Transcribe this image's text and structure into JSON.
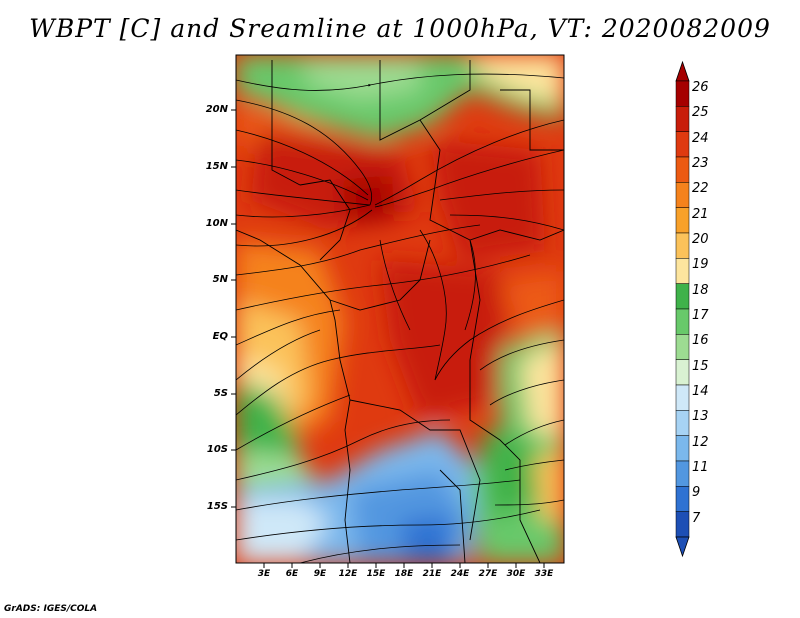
{
  "title": "WBPT [C] and Sreamline at 1000hPa, VT: 2020082009",
  "credit": "GrADS: IGES/COLA",
  "map": {
    "variable": "Wet-bulb potential temperature",
    "units": "C",
    "level": "1000hPa",
    "valid_time": "2020082009",
    "lat_labels": [
      "20N",
      "15N",
      "10N",
      "5N",
      "EQ",
      "5S",
      "10S",
      "15S"
    ],
    "lon_labels": [
      "3E",
      "6E",
      "9E",
      "12E",
      "15E",
      "18E",
      "21E",
      "24E",
      "27E",
      "30E",
      "33E"
    ]
  },
  "colorbar": {
    "levels": [
      "26",
      "25",
      "24",
      "23",
      "22",
      "21",
      "20",
      "19",
      "18",
      "17",
      "16",
      "15",
      "14",
      "13",
      "12",
      "11",
      "9",
      "7"
    ],
    "colors": [
      "#a50000",
      "#c81d0a",
      "#df3a10",
      "#ec5a12",
      "#f5821c",
      "#f8a12a",
      "#fbc25a",
      "#fde59e",
      "#3fb24a",
      "#68c96a",
      "#9ddc92",
      "#d9f2d2",
      "#cfe8f8",
      "#a7d3f4",
      "#7bb8ec",
      "#5297e0",
      "#2f72d2",
      "#1d4fb5"
    ]
  }
}
